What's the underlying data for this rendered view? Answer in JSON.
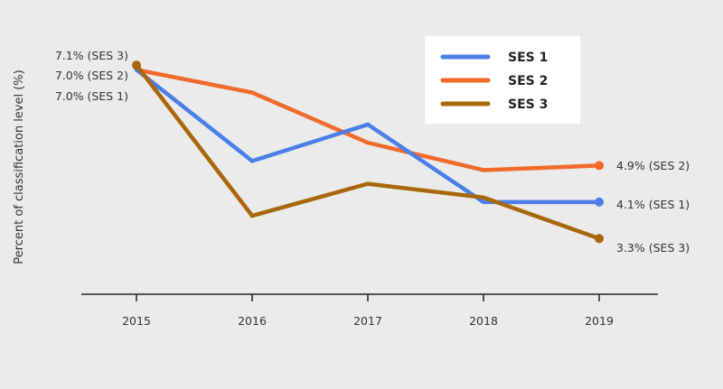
{
  "chart_data": {
    "type": "line",
    "title": "",
    "xlabel": "",
    "ylabel": "Percent of classification level (%)",
    "x": [
      "2015",
      "2016",
      "2017",
      "2018",
      "2019"
    ],
    "ylim": [
      2.0,
      7.5
    ],
    "grid": false,
    "legend_position": "top-right",
    "series": [
      {
        "name": "SES 1",
        "color": "#4a7ee8",
        "values": [
          7.0,
          5.0,
          5.8,
          4.1,
          4.1
        ]
      },
      {
        "name": "SES 2",
        "color": "#f06a2a",
        "values": [
          7.0,
          6.5,
          5.4,
          4.8,
          4.9
        ]
      },
      {
        "name": "SES 3",
        "color": "#a8670a",
        "values": [
          7.1,
          3.8,
          4.5,
          4.2,
          3.3
        ]
      }
    ],
    "start_labels": [
      "7.1% (SES 3)",
      "7.0% (SES 2)",
      "7.0% (SES 1)"
    ],
    "end_labels": {
      "SES 1": "4.1% (SES 1)",
      "SES 2": "4.9% (SES 2)",
      "SES 3": "3.3% (SES 3)"
    }
  }
}
